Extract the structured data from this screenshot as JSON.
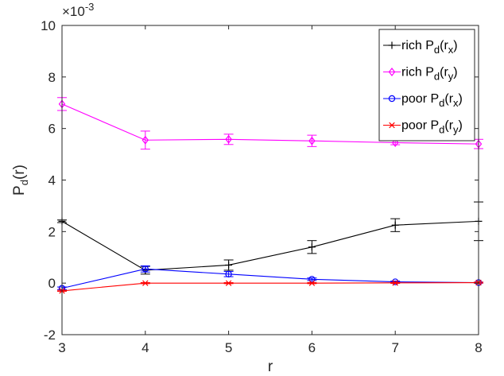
{
  "chart_data": {
    "type": "line",
    "x": [
      3,
      4,
      5,
      6,
      7,
      8
    ],
    "xlabel": "r",
    "ylabel": "P_d(r)",
    "xlim": [
      3,
      8
    ],
    "ylim": [
      -2,
      10
    ],
    "y_multiplier_label": "×10",
    "y_multiplier_exp": "-3",
    "xticks": [
      3,
      4,
      5,
      6,
      7,
      8
    ],
    "yticks": [
      -2,
      0,
      2,
      4,
      6,
      8,
      10
    ],
    "grid": false,
    "legend_position": "top-right",
    "series": [
      {
        "name": "rich P_d(r_x)",
        "legend_main": "rich P",
        "legend_sub1": "d",
        "legend_mid": "(r",
        "legend_sub2": "x",
        "legend_end": ")",
        "color": "#000000",
        "marker": "plus",
        "values": [
          2.4,
          0.5,
          0.7,
          1.4,
          2.25,
          2.4
        ],
        "errors": [
          0.05,
          0.15,
          0.2,
          0.25,
          0.25,
          0.75
        ]
      },
      {
        "name": "rich P_d(r_y)",
        "legend_main": "rich P",
        "legend_sub1": "d",
        "legend_mid": "(r",
        "legend_sub2": "y",
        "legend_end": ")",
        "color": "#ff00ff",
        "marker": "diamond",
        "values": [
          6.95,
          5.55,
          5.58,
          5.52,
          5.45,
          5.4
        ],
        "errors": [
          0.25,
          0.35,
          0.2,
          0.22,
          0.08,
          0.18
        ]
      },
      {
        "name": "poor P_d(r_x)",
        "legend_main": "poor P",
        "legend_sub1": "d",
        "legend_mid": "(r",
        "legend_sub2": "x",
        "legend_end": ")",
        "color": "#0000ff",
        "marker": "circle",
        "values": [
          -0.2,
          0.55,
          0.35,
          0.15,
          0.05,
          0.02
        ],
        "errors": [
          0.05,
          0.12,
          0.1,
          0.05,
          0.03,
          0.02
        ]
      },
      {
        "name": "poor P_d(r_y)",
        "legend_main": "poor P",
        "legend_sub1": "d",
        "legend_mid": "(r",
        "legend_sub2": "y",
        "legend_end": ")",
        "color": "#ff0000",
        "marker": "x",
        "values": [
          -0.3,
          0.0,
          0.0,
          0.0,
          0.01,
          0.02
        ],
        "errors": [
          0.02,
          0.02,
          0.02,
          0.02,
          0.02,
          0.02
        ]
      }
    ]
  }
}
